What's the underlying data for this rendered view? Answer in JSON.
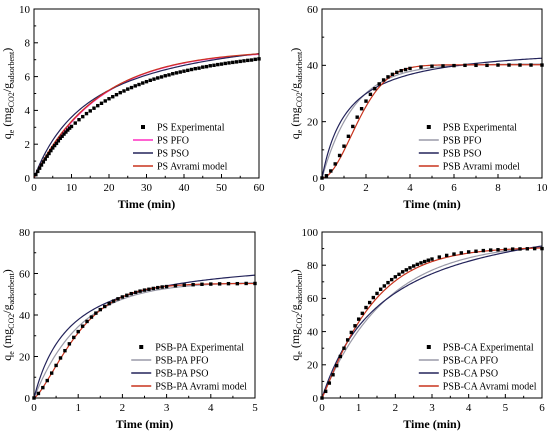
{
  "chart_data": [
    {
      "type": "line",
      "xlabel": "Time (min)",
      "ylabel": {
        "base": "q",
        "sub": "e",
        "unit_pre": " (mg",
        "unit_sub1": "CO2",
        "unit_mid": "/g",
        "unit_sub2": "adsorbent",
        "unit_post": ")"
      },
      "xlim": [
        0,
        60
      ],
      "ylim": [
        0,
        10
      ],
      "xticks": [
        "0",
        "10",
        "20",
        "30",
        "40",
        "50",
        "60"
      ],
      "yticks": [
        "0",
        "2",
        "4",
        "6",
        "8",
        "10"
      ],
      "legend": "bottom-right",
      "models": {
        "pfo": [
          7.56,
          0.0574
        ],
        "pso": [
          9.3,
          0.0068
        ],
        "avrami": [
          7.6,
          0.0577,
          0.985
        ]
      },
      "experimental": {
        "x": [
          0.5,
          1,
          1.5,
          2,
          2.5,
          3,
          3.5,
          4,
          4.5,
          5,
          5.5,
          6,
          6.5,
          7,
          7.5,
          8,
          8.5,
          9,
          9.5,
          10,
          11,
          12,
          13,
          14,
          15,
          16,
          17,
          18,
          19,
          20,
          21,
          22,
          23,
          24,
          25,
          26,
          27,
          28,
          29,
          30,
          31,
          32,
          33,
          34,
          35,
          36,
          37,
          38,
          39,
          40,
          41,
          42,
          43,
          44,
          45,
          46,
          47,
          48,
          49,
          50,
          51,
          52,
          53,
          54,
          55,
          56,
          57,
          58,
          59,
          60
        ],
        "y": [
          0.2,
          0.39,
          0.58,
          0.77,
          0.95,
          1.12,
          1.29,
          1.45,
          1.62,
          1.78,
          1.92,
          2.05,
          2.2,
          2.35,
          2.47,
          2.6,
          2.72,
          2.84,
          2.95,
          3.05,
          3.25,
          3.45,
          3.63,
          3.81,
          3.97,
          4.13,
          4.28,
          4.42,
          4.56,
          4.69,
          4.81,
          4.93,
          5.05,
          5.15,
          5.26,
          5.35,
          5.45,
          5.53,
          5.62,
          5.7,
          5.78,
          5.85,
          5.92,
          5.98,
          6.05,
          6.1,
          6.17,
          6.22,
          6.27,
          6.32,
          6.37,
          6.42,
          6.47,
          6.5,
          6.56,
          6.59,
          6.64,
          6.67,
          6.71,
          6.74,
          6.78,
          6.81,
          6.84,
          6.87,
          6.9,
          6.93,
          6.96,
          6.98,
          7.02,
          7.05
        ]
      },
      "series": [
        {
          "name": "PS Experimental",
          "kind": "points",
          "color": "#000000"
        },
        {
          "name": "PS PFO",
          "kind": "pfo",
          "color": "#ff2ec2"
        },
        {
          "name": "PS PSO",
          "kind": "pso",
          "color": "#23235a"
        },
        {
          "name": "PS Avrami model",
          "kind": "avrami",
          "color": "#c8331d"
        }
      ]
    },
    {
      "type": "line",
      "xlabel": "Time (min)",
      "ylabel": {
        "base": "q",
        "sub": "e",
        "unit_pre": " (mg",
        "unit_sub1": "CO2",
        "unit_mid": "/g",
        "unit_sub2": "adsorbent",
        "unit_post": ")"
      },
      "xlim": [
        0,
        10
      ],
      "ylim": [
        0,
        60
      ],
      "xticks": [
        "0",
        "2",
        "4",
        "6",
        "8",
        "10"
      ],
      "yticks": [
        "0",
        "20",
        "40",
        "60"
      ],
      "legend": "bottom-right",
      "models": {
        "pfo": [
          40.5,
          0.68
        ],
        "pso": [
          47.5,
          0.018
        ],
        "avrami": [
          40.2,
          0.5,
          1.85
        ]
      },
      "experimental": {
        "x": [
          0,
          0.2,
          0.4,
          0.6,
          0.8,
          1,
          1.2,
          1.4,
          1.6,
          1.8,
          2,
          2.2,
          2.4,
          2.6,
          2.8,
          3,
          3.2,
          3.4,
          3.6,
          3.8,
          4,
          4.5,
          5,
          5.5,
          6,
          6.5,
          7,
          7.5,
          8,
          8.5,
          9,
          9.5,
          10
        ],
        "y": [
          0,
          0.8,
          2.5,
          5,
          8,
          11.3,
          14.8,
          18.3,
          21.6,
          24.6,
          27.3,
          29.7,
          31.7,
          33.4,
          34.8,
          35.9,
          36.8,
          37.5,
          38.1,
          38.5,
          38.9,
          39.4,
          39.7,
          39.8,
          39.9,
          40,
          40,
          40,
          40.1,
          40.1,
          40.1,
          40.1,
          40.1
        ]
      },
      "series": [
        {
          "name": "PSB Experimental",
          "kind": "points",
          "color": "#000000"
        },
        {
          "name": "PSB PFO",
          "kind": "pfo",
          "color": "#9a9aa8"
        },
        {
          "name": "PSB PSO",
          "kind": "pso",
          "color": "#23235a"
        },
        {
          "name": "PSB Avrami model",
          "kind": "avrami",
          "color": "#c8331d"
        }
      ]
    },
    {
      "type": "line",
      "xlabel": "Time (min)",
      "ylabel": {
        "base": "q",
        "sub": "e",
        "unit_pre": " (mg",
        "unit_sub1": "CO2",
        "unit_mid": "/g",
        "unit_sub2": "adsorbent",
        "unit_post": ")"
      },
      "xlim": [
        0,
        5
      ],
      "ylim": [
        0,
        80
      ],
      "xticks": [
        "0",
        "1",
        "2",
        "3",
        "4",
        "5"
      ],
      "yticks": [
        "0",
        "20",
        "40",
        "60",
        "80"
      ],
      "legend": "bottom-right",
      "models": {
        "pfo": [
          56,
          0.95
        ],
        "pso": [
          69,
          0.0175
        ],
        "avrami": [
          55.2,
          0.88,
          1.35
        ]
      },
      "experimental": {
        "x": [
          0,
          0.1,
          0.2,
          0.3,
          0.4,
          0.5,
          0.6,
          0.7,
          0.8,
          0.9,
          1,
          1.1,
          1.2,
          1.3,
          1.4,
          1.5,
          1.6,
          1.7,
          1.8,
          1.9,
          2,
          2.1,
          2.2,
          2.3,
          2.4,
          2.5,
          2.6,
          2.7,
          2.8,
          2.9,
          3,
          3.2,
          3.4,
          3.6,
          3.8,
          4,
          4.2,
          4.4,
          4.6,
          4.8,
          5
        ],
        "y": [
          0,
          2.2,
          5,
          8.4,
          12,
          15.7,
          19.3,
          22.8,
          26.1,
          29.2,
          32,
          34.6,
          36.9,
          39,
          40.9,
          42.6,
          44.1,
          45.5,
          46.7,
          47.8,
          48.7,
          49.5,
          50.3,
          50.9,
          51.5,
          52,
          52.4,
          52.8,
          53.2,
          53.5,
          53.7,
          54.1,
          54.4,
          54.6,
          54.8,
          54.9,
          55,
          55.1,
          55.1,
          55.2,
          55.2
        ]
      },
      "series": [
        {
          "name": "PSB-PA Experimental",
          "kind": "points",
          "color": "#000000"
        },
        {
          "name": "PSB-PA PFO",
          "kind": "pfo",
          "color": "#9a9aa8"
        },
        {
          "name": "PSB-PA PSO",
          "kind": "pso",
          "color": "#23235a"
        },
        {
          "name": "PSB-PA Avrami model",
          "kind": "avrami",
          "color": "#c8331d"
        }
      ]
    },
    {
      "type": "line",
      "xlabel": "Time (min)",
      "ylabel": {
        "base": "q",
        "sub": "e",
        "unit_pre": " (mg",
        "unit_sub1": "CO2",
        "unit_mid": "/g",
        "unit_sub2": "adsorbent",
        "unit_post": ")"
      },
      "xlim": [
        0,
        6
      ],
      "ylim": [
        0,
        100
      ],
      "xticks": [
        "0",
        "1",
        "2",
        "3",
        "4",
        "5",
        "6"
      ],
      "yticks": [
        "0",
        "20",
        "40",
        "60",
        "80",
        "100"
      ],
      "legend": "bottom-right",
      "models": {
        "pfo": [
          94,
          0.57
        ],
        "pso": [
          118,
          0.0049
        ],
        "avrami": [
          91,
          0.72,
          1.1
        ]
      },
      "experimental": {
        "x": [
          0,
          0.1,
          0.2,
          0.3,
          0.4,
          0.5,
          0.6,
          0.7,
          0.8,
          0.9,
          1,
          1.1,
          1.2,
          1.3,
          1.4,
          1.5,
          1.6,
          1.7,
          1.8,
          1.9,
          2,
          2.1,
          2.2,
          2.3,
          2.4,
          2.5,
          2.6,
          2.7,
          2.8,
          2.9,
          3,
          3.2,
          3.4,
          3.6,
          3.8,
          4,
          4.2,
          4.4,
          4.6,
          4.8,
          5,
          5.2,
          5.4,
          5.6,
          5.8,
          6
        ],
        "y": [
          0,
          4,
          9,
          14,
          19.5,
          25,
          30,
          35,
          39.5,
          43.5,
          47.5,
          51,
          54.5,
          57.5,
          60.5,
          63,
          65.5,
          67.5,
          69.5,
          71.3,
          73,
          74.5,
          76,
          77.2,
          78.4,
          79.5,
          80.5,
          81.4,
          82.2,
          83,
          83.7,
          84.9,
          85.9,
          86.7,
          87.4,
          88,
          88.4,
          88.8,
          89.1,
          89.3,
          89.5,
          89.7,
          89.8,
          89.9,
          90,
          90
        ]
      },
      "series": [
        {
          "name": "PSB-CA Experimental",
          "kind": "points",
          "color": "#000000"
        },
        {
          "name": "PSB-CA PFO",
          "kind": "pfo",
          "color": "#9a9aa8"
        },
        {
          "name": "PSB-CA PSO",
          "kind": "pso",
          "color": "#23235a"
        },
        {
          "name": "PSB-CA Avrami model",
          "kind": "avrami",
          "color": "#c8331d"
        }
      ]
    }
  ]
}
